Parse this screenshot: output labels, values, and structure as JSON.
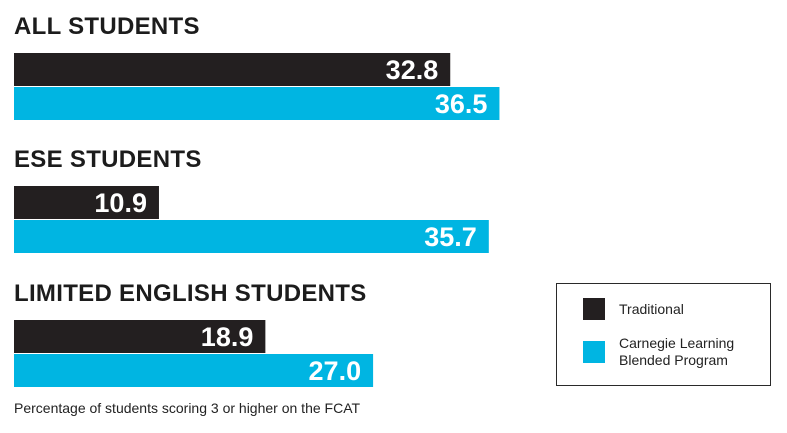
{
  "chart_data": {
    "type": "bar",
    "orientation": "horizontal",
    "categories": [
      "ALL STUDENTS",
      "ESE STUDENTS",
      "LIMITED ENGLISH STUDENTS"
    ],
    "series": [
      {
        "name": "Traditional",
        "color": "#231f20",
        "values": [
          32.8,
          10.9,
          18.9
        ],
        "labels": [
          "32.8",
          "10.9",
          "18.9"
        ]
      },
      {
        "name": "Carnegie Learning Blended Program",
        "color": "#00b5e2",
        "values": [
          36.5,
          35.7,
          27.0
        ],
        "labels": [
          "36.5",
          "35.7",
          "27.0"
        ]
      }
    ],
    "xlim": [
      0,
      40
    ],
    "grid": false,
    "legend_position": "bottom-right",
    "caption": "Percentage of students scoring 3 or higher on the FCAT"
  },
  "legend": {
    "items": [
      {
        "lines": [
          "Traditional"
        ]
      },
      {
        "lines": [
          "Carnegie Learning",
          "Blended Program"
        ]
      }
    ]
  }
}
